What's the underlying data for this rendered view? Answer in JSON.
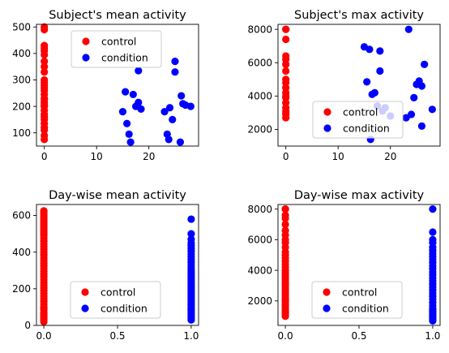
{
  "colors": {
    "control": "#ff0000",
    "condition": "#0000ff"
  },
  "chart_data": [
    {
      "type": "scatter",
      "title": "Subject's mean activity",
      "xlabel": "",
      "ylabel": "",
      "xlim": [
        -1.5,
        29.5
      ],
      "ylim": [
        50,
        510
      ],
      "xticks": [
        0,
        10,
        20
      ],
      "yticks": [
        100,
        200,
        300,
        400,
        500
      ],
      "legend": {
        "position": "upper-center",
        "entries": [
          "control",
          "condition"
        ]
      },
      "series": [
        {
          "name": "control",
          "color": "red",
          "x": [
            0,
            0,
            0,
            0,
            0,
            0,
            0,
            0,
            0,
            0,
            0,
            0,
            0,
            0,
            0,
            0,
            0,
            0,
            0,
            0,
            0,
            0,
            0,
            0,
            0,
            0,
            0,
            0,
            0
          ],
          "y": [
            75,
            90,
            110,
            135,
            150,
            170,
            185,
            200,
            215,
            230,
            245,
            260,
            270,
            280,
            290,
            300,
            330,
            350,
            370,
            395,
            410,
            420,
            430,
            490,
            500,
            225,
            205,
            160,
            120
          ]
        },
        {
          "name": "condition",
          "color": "blue",
          "x": [
            15,
            15.5,
            15.8,
            16.2,
            16.5,
            17,
            17.5,
            18,
            18,
            18.5,
            23,
            23.5,
            23.8,
            24,
            24.5,
            25,
            25,
            26,
            26.2,
            26.5,
            27,
            28
          ],
          "y": [
            180,
            255,
            135,
            95,
            65,
            245,
            200,
            215,
            335,
            190,
            180,
            95,
            75,
            195,
            150,
            370,
            330,
            65,
            240,
            210,
            205,
            200
          ]
        }
      ]
    },
    {
      "type": "scatter",
      "title": "Subject's max activity",
      "xlabel": "",
      "ylabel": "",
      "xlim": [
        -1.5,
        29.5
      ],
      "ylim": [
        1000,
        8300
      ],
      "xticks": [
        0,
        10,
        20
      ],
      "yticks": [
        2000,
        4000,
        6000,
        8000
      ],
      "legend": {
        "position": "lower-right",
        "entries": [
          "control",
          "condition"
        ]
      },
      "series": [
        {
          "name": "control",
          "color": "red",
          "x": [
            0,
            0,
            0,
            0,
            0,
            0,
            0,
            0,
            0,
            0,
            0,
            0,
            0,
            0,
            0,
            0,
            0,
            0,
            0
          ],
          "y": [
            2700,
            3000,
            3300,
            3600,
            3900,
            4200,
            4500,
            4800,
            5000,
            5500,
            5900,
            6200,
            6400,
            7400,
            8000,
            8000,
            3100,
            4000,
            2900
          ]
        },
        {
          "name": "condition",
          "color": "blue",
          "x": [
            15,
            15.5,
            16,
            16.5,
            17,
            17.5,
            18,
            18,
            19,
            20,
            23,
            23.5,
            24,
            24.5,
            25,
            25.5,
            26,
            26,
            26.5,
            28,
            16.2,
            18.5
          ],
          "y": [
            6950,
            4850,
            6800,
            4100,
            4200,
            3400,
            6700,
            5500,
            3300,
            2800,
            2700,
            8000,
            2900,
            3900,
            4700,
            4900,
            2200,
            4600,
            5900,
            3200,
            1400,
            3100
          ]
        }
      ]
    },
    {
      "type": "scatter",
      "title": "Day-wise mean activity",
      "xlabel": "",
      "ylabel": "",
      "xlim": [
        -0.05,
        1.05
      ],
      "ylim": [
        0,
        660
      ],
      "xticks": [
        0.0,
        0.5,
        1.0
      ],
      "yticks": [
        0,
        200,
        400,
        600
      ],
      "legend": {
        "position": "lower-center",
        "entries": [
          "control",
          "condition"
        ]
      },
      "series": [
        {
          "name": "control",
          "color": "red",
          "x": [
            0,
            0,
            0,
            0,
            0,
            0,
            0,
            0,
            0,
            0,
            0,
            0,
            0,
            0,
            0,
            0,
            0,
            0,
            0,
            0,
            0,
            0,
            0,
            0,
            0,
            0,
            0,
            0,
            0,
            0,
            0,
            0,
            0,
            0,
            0,
            0,
            0,
            0,
            0,
            0,
            0,
            0,
            0,
            0,
            0,
            0,
            0,
            0,
            0,
            0
          ],
          "y": [
            20,
            30,
            40,
            55,
            70,
            85,
            100,
            115,
            130,
            145,
            160,
            175,
            190,
            205,
            220,
            235,
            250,
            265,
            280,
            295,
            310,
            325,
            340,
            355,
            370,
            385,
            400,
            415,
            430,
            445,
            460,
            475,
            490,
            500,
            510,
            520,
            530,
            540,
            550,
            560,
            570,
            580,
            590,
            600,
            610,
            620,
            625,
            45,
            65,
            95
          ]
        },
        {
          "name": "condition",
          "color": "blue",
          "x": [
            1,
            1,
            1,
            1,
            1,
            1,
            1,
            1,
            1,
            1,
            1,
            1,
            1,
            1,
            1,
            1,
            1,
            1,
            1,
            1,
            1,
            1,
            1,
            1,
            1,
            1,
            1,
            1,
            1,
            1,
            1,
            1,
            1,
            1,
            1,
            1,
            1,
            1,
            1,
            1,
            1
          ],
          "y": [
            30,
            40,
            50,
            60,
            70,
            80,
            90,
            100,
            110,
            120,
            130,
            140,
            150,
            160,
            170,
            180,
            190,
            200,
            210,
            220,
            230,
            240,
            250,
            260,
            270,
            280,
            290,
            300,
            315,
            330,
            345,
            360,
            375,
            390,
            405,
            420,
            435,
            450,
            470,
            500,
            580
          ]
        }
      ]
    },
    {
      "type": "scatter",
      "title": "Day-wise max activity",
      "xlabel": "",
      "ylabel": "",
      "xlim": [
        -0.05,
        1.05
      ],
      "ylim": [
        400,
        8300
      ],
      "xticks": [
        0.0,
        0.5,
        1.0
      ],
      "yticks": [
        2000,
        4000,
        6000,
        8000
      ],
      "legend": {
        "position": "lower-center",
        "entries": [
          "control",
          "condition"
        ]
      },
      "series": [
        {
          "name": "control",
          "color": "red",
          "x": [
            0,
            0,
            0,
            0,
            0,
            0,
            0,
            0,
            0,
            0,
            0,
            0,
            0,
            0,
            0,
            0,
            0,
            0,
            0,
            0,
            0,
            0,
            0,
            0,
            0,
            0,
            0,
            0,
            0,
            0,
            0,
            0,
            0,
            0,
            0,
            0,
            0,
            0,
            0,
            0
          ],
          "y": [
            1000,
            1150,
            1300,
            1450,
            1600,
            1750,
            1900,
            2050,
            2200,
            2350,
            2500,
            2650,
            2800,
            2950,
            3100,
            3250,
            3400,
            3550,
            3700,
            3850,
            4000,
            4200,
            4400,
            4600,
            4800,
            5000,
            5200,
            5500,
            5800,
            6000,
            6300,
            6600,
            7000,
            7400,
            7600,
            8000,
            8000,
            1250,
            1700,
            2100
          ]
        },
        {
          "name": "condition",
          "color": "blue",
          "x": [
            1,
            1,
            1,
            1,
            1,
            1,
            1,
            1,
            1,
            1,
            1,
            1,
            1,
            1,
            1,
            1,
            1,
            1,
            1,
            1,
            1,
            1,
            1,
            1,
            1,
            1,
            1,
            1,
            1,
            1,
            1,
            1,
            1
          ],
          "y": [
            700,
            900,
            1100,
            1300,
            1500,
            1700,
            1900,
            2100,
            2300,
            2500,
            2700,
            2900,
            3100,
            3300,
            3500,
            3700,
            3900,
            4100,
            4300,
            4500,
            4700,
            4900,
            5100,
            5300,
            5500,
            5800,
            6000,
            6500,
            8000,
            800,
            1000,
            1200,
            1400
          ]
        }
      ]
    }
  ]
}
